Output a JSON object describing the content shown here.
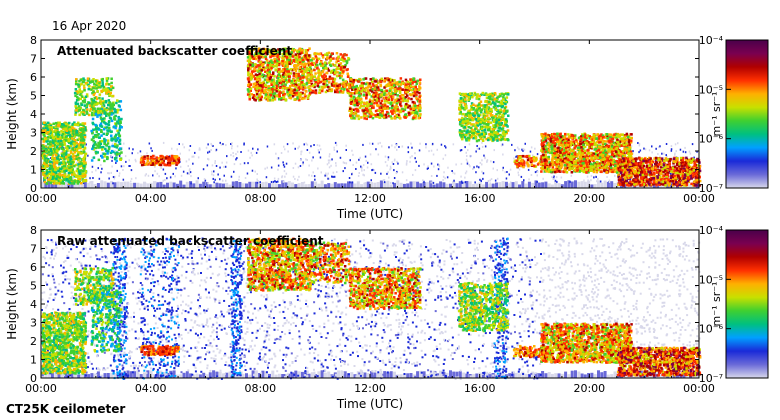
{
  "date": "16 Apr 2020",
  "instrument": "CT25K ceilometer",
  "colors": {
    "scale": [
      "#d8d8ea",
      "#6a6ad8",
      "#1a2ad8",
      "#00a0ff",
      "#00c080",
      "#40d030",
      "#c8e000",
      "#ffb000",
      "#ff3000",
      "#b00000",
      "#7a0050",
      "#4a004a"
    ]
  },
  "chart_data": [
    {
      "type": "heatmap",
      "title": "Attenuated backscatter coefficient",
      "xlabel": "Time (UTC)",
      "ylabel": "Height (km)",
      "xticks": [
        "00:00",
        "04:00",
        "08:00",
        "12:00",
        "16:00",
        "20:00",
        "00:00"
      ],
      "xlim": [
        0,
        24
      ],
      "yticks": [
        "0",
        "1",
        "2",
        "3",
        "4",
        "5",
        "6",
        "7",
        "8"
      ],
      "ylim": [
        0,
        8
      ],
      "colorbar": {
        "label": "m⁻¹ sr⁻¹",
        "scale": "log",
        "range": [
          1e-07,
          0.0001
        ],
        "ticks": [
          "10⁻⁷",
          "10⁻⁶",
          "10⁻⁵",
          "10⁻⁴"
        ]
      },
      "grid": false
    },
    {
      "type": "heatmap",
      "title": "Raw attenuated backscatter coefficient",
      "xlabel": "Time (UTC)",
      "ylabel": "Height (km)",
      "xticks": [
        "00:00",
        "04:00",
        "08:00",
        "12:00",
        "16:00",
        "20:00",
        "00:00"
      ],
      "xlim": [
        0,
        24
      ],
      "yticks": [
        "0",
        "1",
        "2",
        "3",
        "4",
        "5",
        "6",
        "7",
        "8"
      ],
      "ylim": [
        0,
        8
      ],
      "colorbar": {
        "label": "m⁻¹ sr⁻¹",
        "scale": "log",
        "range": [
          1e-07,
          0.0001
        ],
        "ticks": [
          "10⁻⁷",
          "10⁻⁶",
          "10⁻⁵",
          "10⁻⁴"
        ]
      },
      "grid": false
    }
  ]
}
